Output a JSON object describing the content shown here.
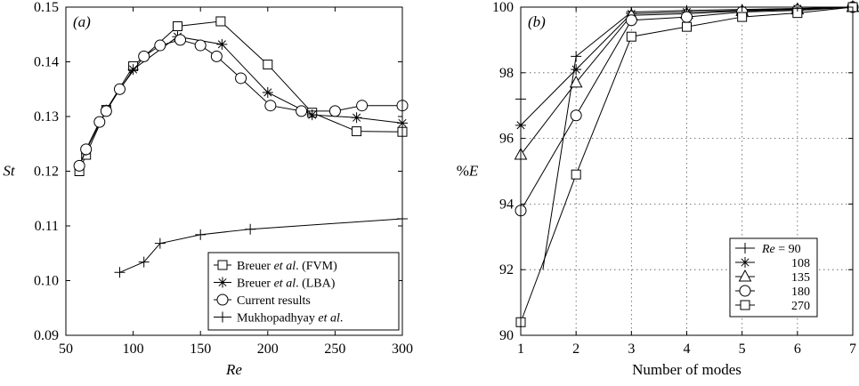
{
  "chart_data": [
    {
      "type": "line",
      "panel_label": "(a)",
      "xlabel": "Re",
      "ylabel": "St",
      "xlim": [
        50,
        300
      ],
      "ylim": [
        0.09,
        0.15
      ],
      "xticks": [
        50,
        100,
        150,
        200,
        250,
        300
      ],
      "yticks": [
        0.09,
        0.1,
        0.11,
        0.12,
        0.13,
        0.14,
        0.15
      ],
      "ytick_labels": [
        "0.09",
        "0.10",
        "0.11",
        "0.12",
        "0.13",
        "0.14",
        "0.15"
      ],
      "grid": false,
      "legend_position": "bottom-right",
      "series": [
        {
          "name": "Breuer et al. (FVM)",
          "legend_parts": [
            {
              "t": "Breuer "
            },
            {
              "t": "et al",
              "i": true
            },
            {
              "t": ". (FVM)"
            }
          ],
          "marker": "square",
          "x": [
            60,
            65,
            80,
            100,
            133,
            165,
            200,
            233,
            266,
            300
          ],
          "y": [
            0.12,
            0.123,
            0.1312,
            0.1392,
            0.1465,
            0.1474,
            0.1395,
            0.1307,
            0.1273,
            0.1272
          ]
        },
        {
          "name": "Breuer et al. (LBA)",
          "legend_parts": [
            {
              "t": "Breuer "
            },
            {
              "t": "et al",
              "i": true
            },
            {
              "t": ". (LBA)"
            }
          ],
          "marker": "star",
          "x": [
            60,
            65,
            80,
            100,
            133,
            166,
            200,
            233,
            266,
            300
          ],
          "y": [
            0.121,
            0.1238,
            0.1312,
            0.1386,
            0.1446,
            0.1432,
            0.1344,
            0.1303,
            0.1298,
            0.1288
          ]
        },
        {
          "name": "Current results",
          "legend_parts": [
            {
              "t": "Current results"
            }
          ],
          "marker": "circle",
          "x": [
            60,
            65,
            75,
            80,
            90,
            108,
            120,
            135,
            150,
            162,
            180,
            202,
            225,
            250,
            270,
            300
          ],
          "y": [
            0.121,
            0.124,
            0.129,
            0.131,
            0.135,
            0.141,
            0.143,
            0.144,
            0.143,
            0.141,
            0.137,
            0.132,
            0.131,
            0.131,
            0.132,
            0.132
          ]
        },
        {
          "name": "Mukhopadhyay et al.",
          "legend_parts": [
            {
              "t": "Mukhopadhyay "
            },
            {
              "t": "et al",
              "i": true
            },
            {
              "t": "."
            }
          ],
          "marker": "plus",
          "x": [
            90,
            108,
            120,
            150,
            187,
            300
          ],
          "y": [
            0.1015,
            0.1034,
            0.1068,
            0.1084,
            0.1094,
            0.1113
          ]
        }
      ]
    },
    {
      "type": "line",
      "panel_label": "(b)",
      "xlabel": "Number of modes",
      "ylabel": "%E",
      "xlim": [
        1,
        7
      ],
      "ylim": [
        90,
        100
      ],
      "xticks": [
        1,
        2,
        3,
        4,
        5,
        6,
        7
      ],
      "yticks": [
        90,
        92,
        94,
        96,
        98,
        100
      ],
      "ytick_labels": [
        "90",
        "92",
        "94",
        "96",
        "98",
        "100"
      ],
      "grid": true,
      "legend_position": "bottom-right",
      "legend_title_prefix": "Re",
      "series": [
        {
          "name": "90",
          "legend_label": " = 90",
          "marker": "plus",
          "x": [
            1,
            2,
            3,
            4,
            5,
            6,
            7
          ],
          "y": [
            97.2,
            98.5,
            99.85,
            99.9,
            99.93,
            99.96,
            100.0
          ],
          "line_start": [
            1.4,
            92.0
          ]
        },
        {
          "name": "108",
          "legend_label": "108",
          "marker": "star",
          "x": [
            1,
            2,
            3,
            4,
            5,
            6,
            7
          ],
          "y": [
            96.4,
            98.1,
            99.8,
            99.85,
            99.9,
            99.95,
            100.0
          ]
        },
        {
          "name": "135",
          "legend_label": "135",
          "marker": "triangle",
          "x": [
            1,
            2,
            3,
            4,
            5,
            6,
            7
          ],
          "y": [
            95.5,
            97.7,
            99.75,
            99.8,
            99.88,
            99.93,
            100.0
          ]
        },
        {
          "name": "180",
          "legend_label": "180",
          "marker": "circle",
          "x": [
            1,
            2,
            3,
            4,
            5,
            6,
            7
          ],
          "y": [
            93.8,
            96.7,
            99.6,
            99.7,
            99.85,
            99.9,
            100.0
          ]
        },
        {
          "name": "270",
          "legend_label": "270",
          "marker": "square",
          "x": [
            1,
            2,
            3,
            4,
            5,
            6,
            7
          ],
          "y": [
            90.4,
            94.9,
            99.1,
            99.4,
            99.7,
            99.82,
            100.0
          ]
        }
      ]
    }
  ]
}
